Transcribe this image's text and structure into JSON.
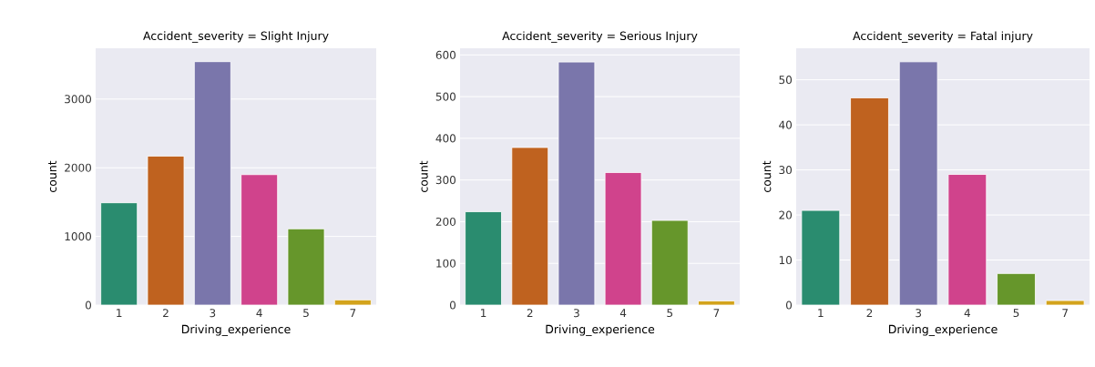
{
  "chart_data": [
    {
      "type": "bar",
      "title": "Accident_severity = Slight Injury",
      "xlabel": "Driving_experience",
      "ylabel": "count",
      "categories": [
        "1",
        "2",
        "3",
        "4",
        "5",
        "7"
      ],
      "values": [
        1490,
        2170,
        3545,
        1900,
        1110,
        75
      ],
      "colors": [
        "#2a8c6f",
        "#bf621f",
        "#7a76ab",
        "#d0438c",
        "#66962b",
        "#d3a31c"
      ],
      "ylim": [
        0,
        3740
      ],
      "yticks": [
        0,
        1000,
        2000,
        3000
      ],
      "grid": "y"
    },
    {
      "type": "bar",
      "title": "Accident_severity = Serious Injury",
      "xlabel": "Driving_experience",
      "ylabel": "count",
      "categories": [
        "1",
        "2",
        "3",
        "4",
        "5",
        "7"
      ],
      "values": [
        224,
        378,
        583,
        318,
        203,
        10
      ],
      "colors": [
        "#2a8c6f",
        "#bf621f",
        "#7a76ab",
        "#d0438c",
        "#66962b",
        "#d3a31c"
      ],
      "ylim": [
        0,
        616
      ],
      "yticks": [
        0,
        100,
        200,
        300,
        400,
        500,
        600
      ],
      "grid": "y"
    },
    {
      "type": "bar",
      "title": "Accident_severity = Fatal injury",
      "xlabel": "Driving_experience",
      "ylabel": "count",
      "categories": [
        "1",
        "2",
        "3",
        "4",
        "5",
        "7"
      ],
      "values": [
        21,
        46,
        54,
        29,
        7,
        1
      ],
      "colors": [
        "#2a8c6f",
        "#bf621f",
        "#7a76ab",
        "#d0438c",
        "#66962b",
        "#d3a31c"
      ],
      "ylim": [
        0,
        57
      ],
      "yticks": [
        0,
        10,
        20,
        30,
        40,
        50
      ],
      "grid": "y"
    }
  ]
}
